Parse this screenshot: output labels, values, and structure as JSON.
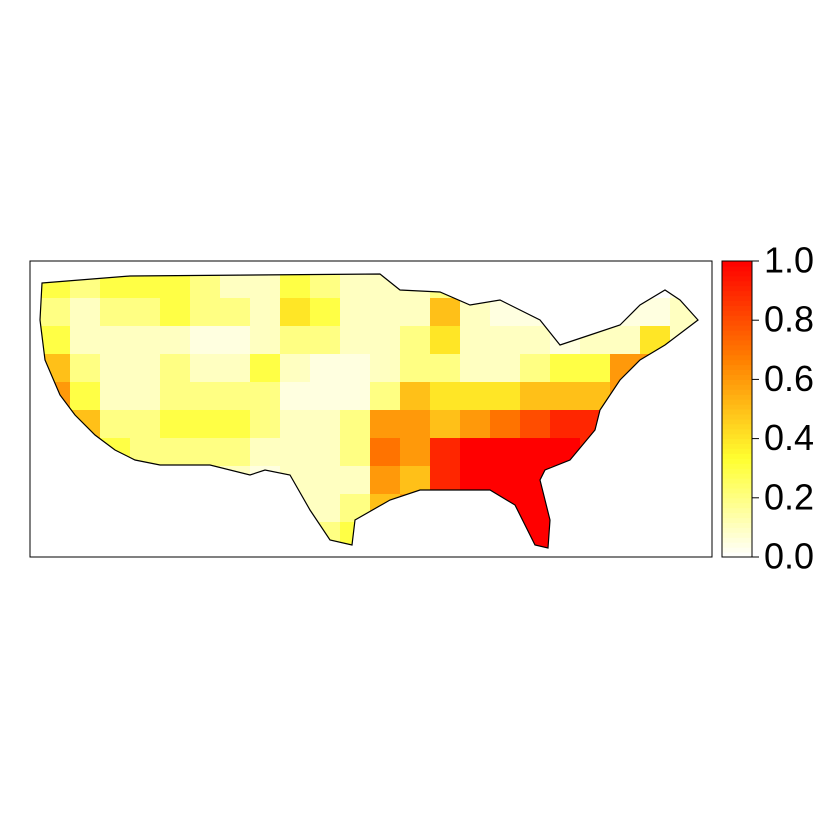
{
  "chart_data": {
    "type": "heatmap",
    "values": [
      [
        0.3,
        0.2,
        0.3,
        0.3,
        0.3,
        0.2,
        0.1,
        0.1,
        0.3,
        0.2,
        0.1,
        0.1,
        0.1,
        0.2,
        null,
        null,
        null,
        null,
        null,
        null,
        null,
        0.05
      ],
      [
        0.2,
        0.1,
        0.2,
        0.2,
        0.3,
        0.2,
        0.2,
        0.1,
        0.4,
        0.3,
        0.1,
        0.1,
        0.1,
        0.5,
        0.1,
        0.05,
        0.05,
        null,
        0.05,
        0.05,
        0.05,
        0.1
      ],
      [
        0.3,
        0.1,
        0.1,
        0.1,
        0.1,
        0.05,
        0.05,
        0.1,
        0.2,
        0.2,
        0.1,
        0.1,
        0.2,
        0.4,
        0.1,
        0.1,
        0.1,
        0.05,
        0.1,
        0.1,
        0.4,
        0.1
      ],
      [
        0.5,
        0.2,
        0.1,
        0.1,
        0.2,
        0.1,
        0.1,
        0.3,
        0.1,
        0.05,
        0.05,
        0.1,
        0.2,
        0.2,
        0.1,
        0.1,
        0.2,
        0.3,
        0.3,
        0.6,
        0.6,
        null
      ],
      [
        0.6,
        0.3,
        0.1,
        0.1,
        0.2,
        0.2,
        0.2,
        0.2,
        0.05,
        0.05,
        0.05,
        0.2,
        0.5,
        0.4,
        0.4,
        0.4,
        0.5,
        0.5,
        0.5,
        0.6,
        null,
        null
      ],
      [
        0.6,
        0.5,
        0.2,
        0.2,
        0.3,
        0.3,
        0.3,
        0.2,
        0.1,
        0.1,
        0.2,
        0.6,
        0.6,
        0.5,
        0.6,
        0.7,
        0.8,
        0.9,
        0.9,
        0.9,
        null,
        null
      ],
      [
        null,
        0.7,
        0.3,
        0.2,
        0.2,
        0.2,
        0.2,
        0.1,
        0.1,
        0.1,
        0.2,
        0.7,
        0.6,
        0.9,
        1.0,
        1.0,
        1.0,
        1.0,
        0.9,
        null,
        null,
        null
      ],
      [
        null,
        null,
        null,
        null,
        0.3,
        0.2,
        0.1,
        0.05,
        0.1,
        0.1,
        0.1,
        0.6,
        0.5,
        0.9,
        1.0,
        1.0,
        1.0,
        0.9,
        null,
        null,
        null,
        null
      ],
      [
        null,
        null,
        null,
        null,
        null,
        null,
        null,
        0.05,
        0.1,
        0.1,
        0.2,
        0.5,
        0.6,
        0.8,
        0.9,
        1.0,
        1.0,
        null,
        null,
        null,
        null,
        null
      ],
      [
        null,
        null,
        null,
        null,
        null,
        null,
        null,
        null,
        null,
        0.2,
        0.3,
        null,
        null,
        null,
        null,
        null,
        1.0,
        1.0,
        null,
        null,
        null,
        null
      ]
    ],
    "colorscale": [
      "#ffffff",
      "#ffff30",
      "#ff8000",
      "#ff0000"
    ],
    "zlim": [
      0,
      1
    ],
    "zticks": [
      {
        "value": 0,
        "label": "0.0"
      },
      {
        "value": 0.2,
        "label": "0.2"
      },
      {
        "value": 0.4,
        "label": "0.4"
      },
      {
        "value": 0.6,
        "label": "0.6"
      },
      {
        "value": 0.8,
        "label": "0.8"
      },
      {
        "value": 1,
        "label": "1.0"
      }
    ]
  }
}
